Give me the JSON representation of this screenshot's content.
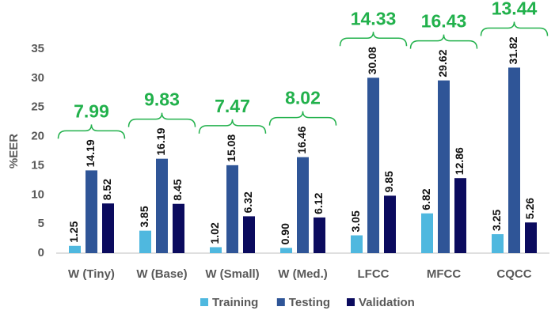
{
  "chart_data": {
    "type": "bar",
    "y_label": "%EER",
    "categories": [
      "W (Tiny)",
      "W (Base)",
      "W (Small)",
      "W (Med.)",
      "LFCC",
      "MFCC",
      "CQCC"
    ],
    "series": [
      {
        "name": "Training",
        "color": "#4fb8df",
        "values": [
          1.25,
          3.85,
          1.02,
          0.9,
          3.05,
          6.82,
          3.25
        ],
        "value_labels": [
          "1.25",
          "3.85",
          "1.02",
          "0.90",
          "3.05",
          "6.82",
          "3.25"
        ]
      },
      {
        "name": "Testing",
        "color": "#2f5597",
        "values": [
          14.19,
          16.19,
          15.08,
          16.46,
          30.08,
          29.62,
          31.82
        ]
      },
      {
        "name": "Validation",
        "color": "#0b0b5e",
        "values": [
          8.52,
          8.45,
          6.32,
          6.12,
          9.85,
          12.86,
          5.26
        ]
      }
    ],
    "annotations": [
      "7.99",
      "9.83",
      "7.47",
      "8.02",
      "14.33",
      "16.43",
      "13.44"
    ],
    "ylim": [
      0,
      35
    ],
    "yticks": [
      0,
      5,
      10,
      15,
      20,
      25,
      30,
      35
    ],
    "grid": false,
    "legend": "bottom"
  }
}
